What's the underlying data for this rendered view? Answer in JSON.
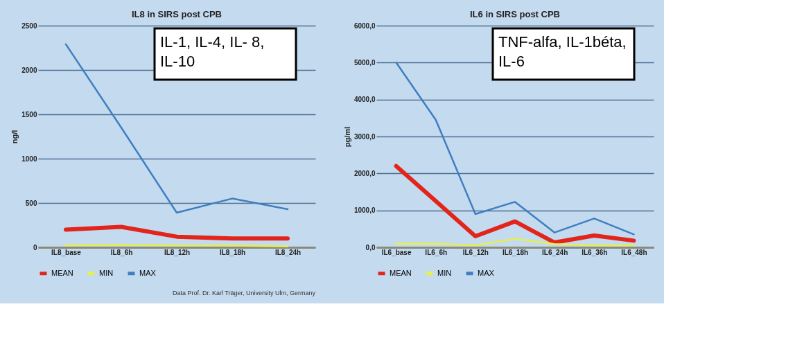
{
  "chart_data": [
    {
      "type": "line",
      "title": "IL8 in SIRS post CPB",
      "ylabel": "ng/l",
      "categories": [
        "IL8_base",
        "IL8_6h",
        "IL8_12h",
        "IL8_18h",
        "IL8_24h"
      ],
      "series": [
        {
          "name": "MEAN",
          "color": "#e3241b",
          "values": [
            200,
            230,
            120,
            100,
            100
          ]
        },
        {
          "name": "MIN",
          "color": "#e6ef4c",
          "values": [
            20,
            30,
            20,
            20,
            10
          ]
        },
        {
          "name": "MAX",
          "color": "#3f7fc0",
          "values": [
            2290,
            1350,
            390,
            550,
            430
          ]
        }
      ],
      "ylim": [
        0,
        2500
      ],
      "yticks": [
        0,
        500,
        1000,
        1500,
        2000,
        2500
      ],
      "grid": "y",
      "legend": "bottom",
      "annotations": [
        "IL-1, IL-4, IL- 8,\nIL-10",
        "Data Prof. Dr. Karl Träger, University Ulm, Germany"
      ]
    },
    {
      "type": "line",
      "title": "IL6 in SIRS post CPB",
      "ylabel": "pg/ml",
      "categories": [
        "IL6_base",
        "IL6_6h",
        "IL6_12h",
        "IL6_18h",
        "IL6_24h",
        "IL6_36h",
        "IL6_48h"
      ],
      "series": [
        {
          "name": "MEAN",
          "color": "#e3241b",
          "values": [
            2200,
            1250,
            300,
            700,
            130,
            320,
            180
          ]
        },
        {
          "name": "MIN",
          "color": "#e6ef4c",
          "values": [
            100,
            100,
            50,
            230,
            90,
            50,
            50
          ]
        },
        {
          "name": "MAX",
          "color": "#3f7fc0",
          "values": [
            5000,
            3450,
            900,
            1230,
            400,
            780,
            350
          ]
        }
      ],
      "ylim": [
        0,
        6000
      ],
      "yticks": [
        {
          "value": 0,
          "label": "0,0"
        },
        {
          "value": 1000,
          "label": "1000,0"
        },
        {
          "value": 2000,
          "label": "2000,0"
        },
        {
          "value": 3000,
          "label": "3000,0"
        },
        {
          "value": 4000,
          "label": "4000,0"
        },
        {
          "value": 5000,
          "label": "5000,0"
        },
        {
          "value": 6000,
          "label": "6000,0"
        }
      ],
      "grid": "y",
      "legend": "bottom",
      "annotations": [
        "TNF-alfa, IL-1béta,\nIL-6"
      ]
    }
  ]
}
